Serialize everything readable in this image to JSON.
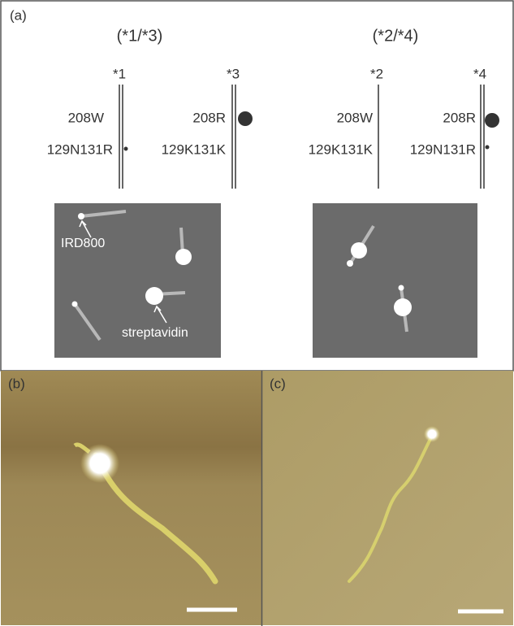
{
  "panel_a": {
    "label": "(a)",
    "groups": [
      {
        "title": "(*1/*3)",
        "alleles": [
          {
            "name": "*1",
            "site208": "208W",
            "site129": "129N131R"
          },
          {
            "name": "*3",
            "site208": "208R",
            "site129": "129K131K"
          }
        ]
      },
      {
        "title": "(*2/*4)",
        "alleles": [
          {
            "name": "*2",
            "site208": "208W",
            "site129": "129K131K"
          },
          {
            "name": "*4",
            "site208": "208R",
            "site129": "129N131R"
          }
        ]
      }
    ],
    "markers": {
      "ird800": "IRD800",
      "streptavidin": "streptavidin"
    }
  },
  "panel_b": {
    "label": "(b)"
  },
  "panel_c": {
    "label": "(c)"
  }
}
